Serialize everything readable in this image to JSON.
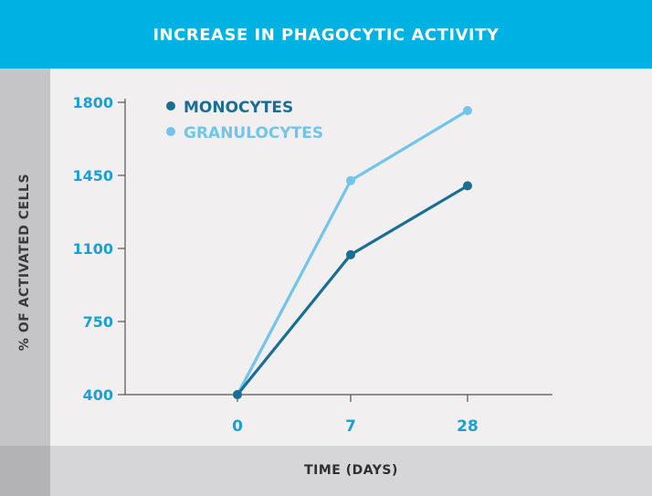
{
  "chart_data": {
    "type": "line",
    "title": "INCREASE IN PHAGOCYTIC ACTIVITY",
    "xlabel": "TIME (DAYS)",
    "ylabel": "% OF ACTIVATED CELLS",
    "categories": [
      "0",
      "7",
      "28"
    ],
    "yticks": [
      400,
      750,
      1100,
      1450,
      1800
    ],
    "ylim": [
      400,
      1800
    ],
    "grid": false,
    "legend_position": "top-left",
    "series": [
      {
        "name": "MONOCYTES",
        "color": "#1a6e93",
        "values": [
          400,
          1070,
          1400
        ]
      },
      {
        "name": "GRANULOCYTES",
        "color": "#71c5ea",
        "values": [
          400,
          1425,
          1760
        ]
      }
    ],
    "tick_color": "#1aa0d6",
    "axis_color": "#555555"
  }
}
